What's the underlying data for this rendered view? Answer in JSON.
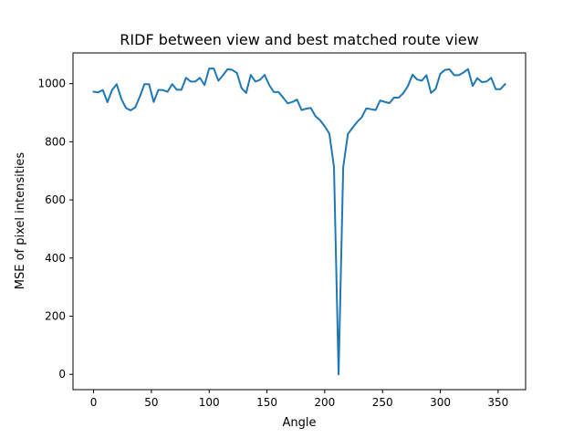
{
  "chart_data": {
    "type": "line",
    "title": "RIDF between view and best matched route view",
    "xlabel": "Angle",
    "ylabel": "MSE of pixel intensities",
    "xlim": [
      -17.8,
      373.8
    ],
    "ylim": [
      -52.6,
      1105.6
    ],
    "xticks": [
      0,
      50,
      100,
      150,
      200,
      250,
      300,
      350
    ],
    "yticks": [
      0,
      200,
      400,
      600,
      800,
      1000
    ],
    "grid": false,
    "line_color": "#1f77b4",
    "series": [
      {
        "x": [
          0,
          4,
          8,
          12,
          16,
          20,
          24,
          28,
          32,
          36,
          40,
          44,
          48,
          52,
          56,
          60,
          64,
          68,
          72,
          76,
          80,
          84,
          88,
          92,
          96,
          100,
          104,
          108,
          112,
          116,
          120,
          124,
          128,
          132,
          136,
          140,
          144,
          148,
          152,
          156,
          160,
          164,
          168,
          172,
          176,
          180,
          184,
          188,
          192,
          196,
          200,
          204,
          208,
          212,
          216,
          220,
          224,
          228,
          232,
          236,
          240,
          244,
          248,
          252,
          256,
          260,
          264,
          268,
          272,
          276,
          280,
          284,
          288,
          292,
          296,
          300,
          304,
          308,
          312,
          316,
          320,
          324,
          328,
          332,
          336,
          340,
          344,
          348,
          352,
          356
        ],
        "values": [
          972,
          970,
          978,
          936,
          978,
          998,
          948,
          916,
          908,
          918,
          955,
          998,
          998,
          937,
          978,
          978,
          972,
          998,
          979,
          979,
          1020,
          1007,
          1007,
          1020,
          995,
          1052,
          1052,
          1010,
          1029,
          1050,
          1047,
          1037,
          985,
          968,
          1030,
          1007,
          1013,
          1030,
          995,
          971,
          971,
          952,
          932,
          937,
          945,
          909,
          914,
          916,
          888,
          874,
          853,
          828,
          714,
          0,
          712,
          826,
          848,
          868,
          884,
          915,
          912,
          909,
          942,
          937,
          933,
          952,
          952,
          967,
          992,
          1031,
          1014,
          1010,
          1029,
          968,
          982,
          1034,
          1047,
          1049,
          1029,
          1029,
          1038,
          1050,
          992,
          1019,
          1005,
          1007,
          1020,
          981,
          981,
          998
        ]
      }
    ]
  }
}
